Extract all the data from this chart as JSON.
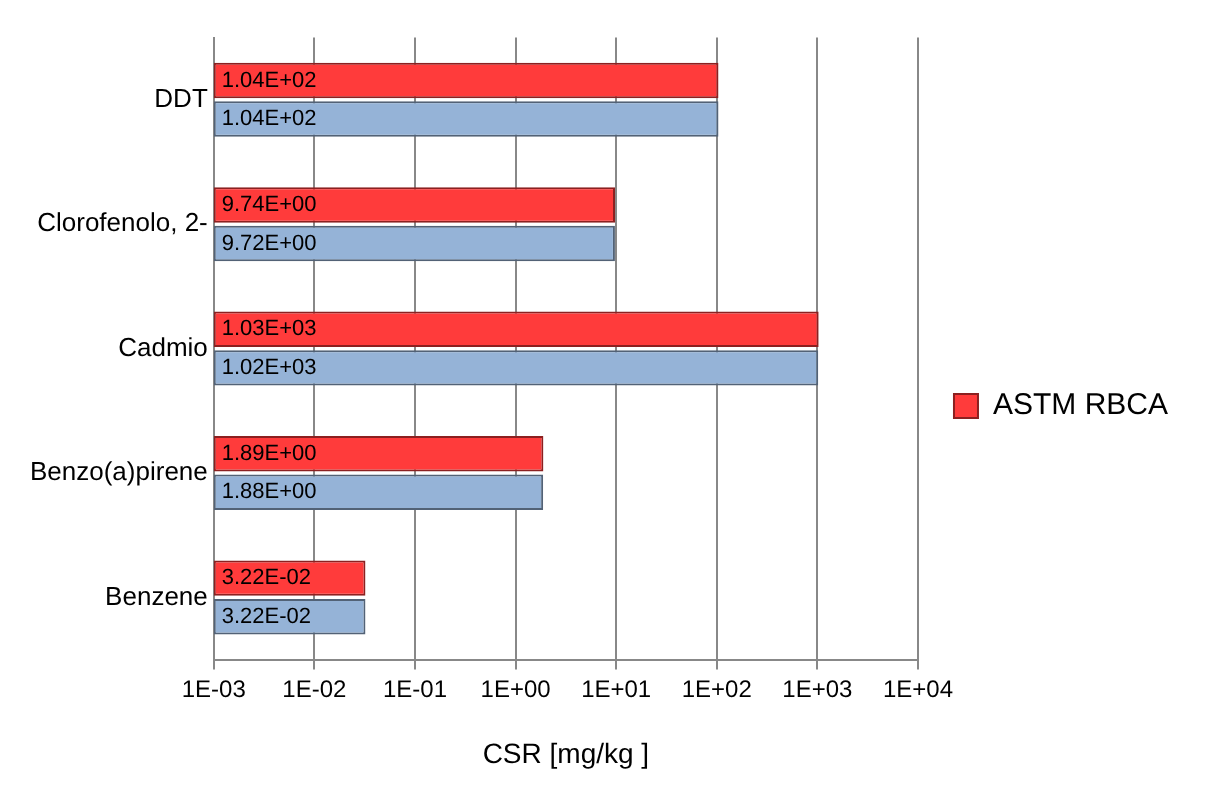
{
  "chart_data": {
    "type": "bar",
    "orientation": "horizontal",
    "log": "x",
    "xlabel": "CSR [mg/kg ]",
    "categories": [
      "DDT",
      "Clorofenolo, 2-",
      "Cadmio",
      "Benzo(a)pirene",
      "Benzene"
    ],
    "series": [
      {
        "name": "ASTM RBCA",
        "color": "#ff3b3b",
        "values": [
          104,
          9.74,
          1030,
          1.89,
          0.0322
        ],
        "value_labels": [
          "1.04E+02",
          "9.74E+00",
          "1.03E+03",
          "1.89E+00",
          "3.22E-02"
        ]
      },
      {
        "color": "#95b3d7",
        "values": [
          104,
          9.72,
          1020,
          1.88,
          0.0322
        ],
        "value_labels": [
          "1.04E+02",
          "9.72E+00",
          "1.02E+03",
          "1.88E+00",
          "3.22E-02"
        ]
      }
    ],
    "xlim": [
      0.001,
      10000
    ],
    "xticks": [
      {
        "value": 0.001,
        "label": "1E-03"
      },
      {
        "value": 0.01,
        "label": "1E-02"
      },
      {
        "value": 0.1,
        "label": "1E-01"
      },
      {
        "value": 1,
        "label": "1E+00"
      },
      {
        "value": 10,
        "label": "1E+01"
      },
      {
        "value": 100,
        "label": "1E+02"
      },
      {
        "value": 1000,
        "label": "1E+03"
      },
      {
        "value": 10000,
        "label": "1E+04"
      }
    ],
    "grid": "x",
    "legend": "right"
  }
}
